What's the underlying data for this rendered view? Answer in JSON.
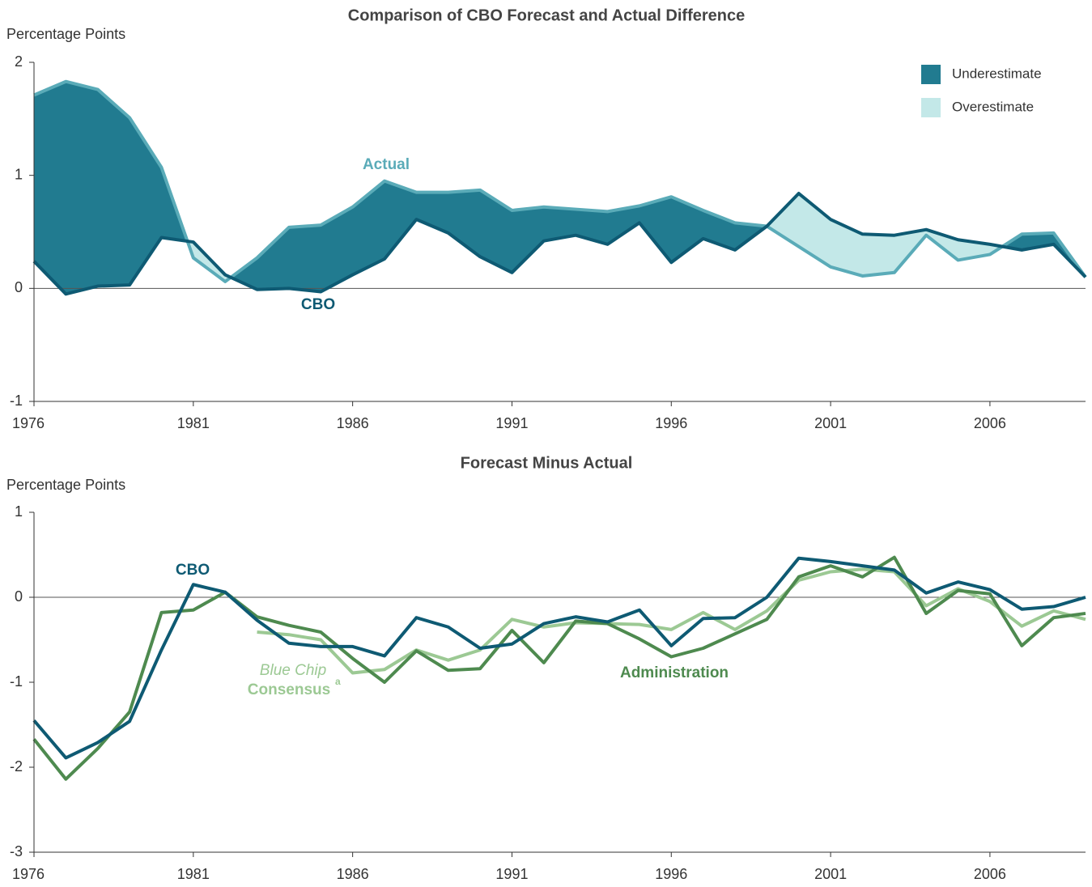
{
  "chart_data": [
    {
      "type": "line",
      "title": "Comparison of CBO Forecast and Actual Difference",
      "ylabel": "Percentage Points",
      "x": [
        1976,
        1977,
        1978,
        1979,
        1980,
        1981,
        1982,
        1983,
        1984,
        1985,
        1986,
        1987,
        1988,
        1989,
        1990,
        1991,
        1992,
        1993,
        1994,
        1995,
        1996,
        1997,
        1998,
        1999,
        2000,
        2001,
        2002,
        2003,
        2004,
        2005,
        2006,
        2007,
        2008,
        2009
      ],
      "xlim": [
        1976,
        2009
      ],
      "xticks": [
        1976,
        1981,
        1986,
        1991,
        1996,
        2001,
        2006
      ],
      "ylim": [
        -1,
        2
      ],
      "yticks": [
        -1,
        0,
        1,
        2
      ],
      "reference_line": 0,
      "series": [
        {
          "name": "Actual",
          "color": "#5aabb8",
          "values": [
            1.71,
            1.83,
            1.76,
            1.51,
            1.07,
            0.27,
            0.06,
            0.27,
            0.54,
            0.56,
            0.72,
            0.95,
            0.85,
            0.85,
            0.87,
            0.69,
            0.72,
            0.7,
            0.68,
            0.73,
            0.81,
            0.69,
            0.58,
            0.55,
            0.37,
            0.19,
            0.11,
            0.14,
            0.47,
            0.25,
            0.3,
            0.48,
            0.49,
            0.1
          ]
        },
        {
          "name": "CBO",
          "color": "#0e5a73",
          "values": [
            0.24,
            -0.05,
            0.02,
            0.03,
            0.45,
            0.41,
            0.12,
            -0.01,
            0.0,
            -0.03,
            0.12,
            0.26,
            0.61,
            0.49,
            0.28,
            0.14,
            0.42,
            0.47,
            0.39,
            0.58,
            0.23,
            0.44,
            0.34,
            0.55,
            0.84,
            0.61,
            0.48,
            0.47,
            0.52,
            0.43,
            0.39,
            0.34,
            0.39,
            0.1
          ]
        }
      ],
      "fills": [
        {
          "name": "Underestimate",
          "color": "#217b90"
        },
        {
          "name": "Overestimate",
          "color": "#c3e8e8"
        }
      ],
      "legend": "upper right"
    },
    {
      "type": "line",
      "title": "Forecast Minus Actual",
      "ylabel": "Percentage Points",
      "x": [
        1976,
        1977,
        1978,
        1979,
        1980,
        1981,
        1982,
        1983,
        1984,
        1985,
        1986,
        1987,
        1988,
        1989,
        1990,
        1991,
        1992,
        1993,
        1994,
        1995,
        1996,
        1997,
        1998,
        1999,
        2000,
        2001,
        2002,
        2003,
        2004,
        2005,
        2006,
        2007,
        2008,
        2009
      ],
      "xlim": [
        1976,
        2009
      ],
      "xticks": [
        1976,
        1981,
        1986,
        1991,
        1996,
        2001,
        2006
      ],
      "ylim": [
        -3,
        1
      ],
      "yticks": [
        -3,
        -2,
        -1,
        0,
        1
      ],
      "reference_line": 0,
      "series": [
        {
          "name": "Consensus",
          "name_prefix": "Blue Chip",
          "name_note": "a",
          "color": "#9cc994",
          "values": [
            null,
            null,
            null,
            null,
            null,
            null,
            null,
            -0.41,
            -0.44,
            -0.5,
            -0.89,
            -0.85,
            -0.62,
            -0.74,
            -0.62,
            -0.26,
            -0.35,
            -0.3,
            -0.31,
            -0.32,
            -0.38,
            -0.18,
            -0.38,
            -0.16,
            0.2,
            0.3,
            0.33,
            0.3,
            -0.1,
            0.1,
            -0.05,
            -0.34,
            -0.16,
            -0.26
          ]
        },
        {
          "name": "Administration",
          "color": "#4e8a4f",
          "values": [
            -1.67,
            -2.14,
            -1.78,
            -1.35,
            -0.18,
            -0.15,
            0.06,
            -0.23,
            -0.33,
            -0.41,
            -0.72,
            -1.0,
            -0.63,
            -0.86,
            -0.84,
            -0.39,
            -0.77,
            -0.28,
            -0.31,
            -0.49,
            -0.7,
            -0.6,
            -0.43,
            -0.26,
            0.24,
            0.37,
            0.24,
            0.47,
            -0.19,
            0.08,
            0.04,
            -0.57,
            -0.24,
            -0.19
          ]
        },
        {
          "name": "CBO",
          "color": "#0e5a73",
          "values": [
            -1.45,
            -1.89,
            -1.71,
            -1.46,
            -0.62,
            0.15,
            0.06,
            -0.27,
            -0.54,
            -0.58,
            -0.58,
            -0.69,
            -0.24,
            -0.35,
            -0.6,
            -0.55,
            -0.31,
            -0.23,
            -0.29,
            -0.15,
            -0.57,
            -0.25,
            -0.24,
            0.0,
            0.46,
            0.42,
            0.37,
            0.32,
            0.05,
            0.18,
            0.09,
            -0.14,
            -0.11,
            0.0
          ]
        }
      ]
    }
  ]
}
